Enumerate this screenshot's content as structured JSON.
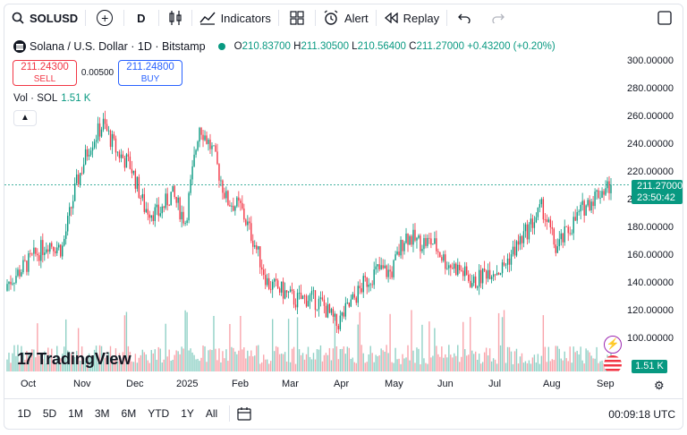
{
  "toolbar": {
    "symbol": "SOLUSD",
    "interval": "D",
    "indicators_label": "Indicators",
    "alert_label": "Alert",
    "replay_label": "Replay",
    "icons": [
      "search-icon",
      "add-symbol-icon",
      "candles-icon",
      "indicators-icon",
      "layout-icon",
      "alarm-icon",
      "replay-icon",
      "undo-icon",
      "redo-icon",
      "fullscreen-icon"
    ]
  },
  "legend": {
    "title": "Solana / U.S. Dollar · 1D · Bitstamp",
    "o_label": "O",
    "o": "210.83700",
    "h_label": "H",
    "h": "211.30500",
    "l_label": "L",
    "l": "210.56400",
    "c_label": "C",
    "c": "211.27000",
    "change": "+0.43200 (+0.20%)"
  },
  "trade": {
    "sell_price": "211.24300",
    "sell_label": "SELL",
    "spread": "0.00500",
    "buy_price": "211.24800",
    "buy_label": "BUY"
  },
  "volume": {
    "label": "Vol · SOL",
    "value": "1.51 K"
  },
  "price_axis": [
    "300.00000",
    "280.00000",
    "260.00000",
    "240.00000",
    "220.00000",
    "200.00000",
    "180.00000",
    "160.00000",
    "140.00000",
    "120.00000",
    "100.00000"
  ],
  "time_axis": [
    "Oct",
    "Nov",
    "Dec",
    "2025",
    "Feb",
    "Mar",
    "Apr",
    "May",
    "Jun",
    "Jul",
    "Aug",
    "Sep"
  ],
  "last_price": {
    "price": "211.27000",
    "countdown": "23:50:42"
  },
  "volume_tag": "1.51 K",
  "brand": "TradingView",
  "ranges": [
    "1D",
    "5D",
    "1M",
    "3M",
    "6M",
    "YTD",
    "1Y",
    "All"
  ],
  "clock": "00:09:18 UTC",
  "colors": {
    "up": "#089981",
    "down": "#f23645",
    "accent": "#2962ff"
  },
  "chart_data": {
    "type": "candlestick",
    "symbol": "SOLUSD",
    "interval": "1D",
    "ylim": [
      90,
      300
    ],
    "last_close": 211.27,
    "weekly_closes": [
      {
        "period": "Oct wk1",
        "close": 140
      },
      {
        "period": "Oct wk2",
        "close": 150
      },
      {
        "period": "Oct wk3",
        "close": 160
      },
      {
        "period": "Oct wk4",
        "close": 170
      },
      {
        "period": "Nov wk1",
        "close": 165
      },
      {
        "period": "Nov wk2",
        "close": 210
      },
      {
        "period": "Nov wk3",
        "close": 240
      },
      {
        "period": "Nov wk4",
        "close": 255
      },
      {
        "period": "Dec wk1",
        "close": 235
      },
      {
        "period": "Dec wk2",
        "close": 225
      },
      {
        "period": "Dec wk3",
        "close": 195
      },
      {
        "period": "Dec wk4",
        "close": 190
      },
      {
        "period": "Jan wk1",
        "close": 205
      },
      {
        "period": "Jan wk2",
        "close": 185
      },
      {
        "period": "Jan wk3",
        "close": 255
      },
      {
        "period": "Jan wk4",
        "close": 235
      },
      {
        "period": "Feb wk1",
        "close": 200
      },
      {
        "period": "Feb wk2",
        "close": 195
      },
      {
        "period": "Feb wk3",
        "close": 170
      },
      {
        "period": "Feb wk4",
        "close": 140
      },
      {
        "period": "Mar wk1",
        "close": 135
      },
      {
        "period": "Mar wk2",
        "close": 128
      },
      {
        "period": "Mar wk3",
        "close": 130
      },
      {
        "period": "Mar wk4",
        "close": 125
      },
      {
        "period": "Apr wk1",
        "close": 110
      },
      {
        "period": "Apr wk2",
        "close": 125
      },
      {
        "period": "Apr wk3",
        "close": 140
      },
      {
        "period": "Apr wk4",
        "close": 150
      },
      {
        "period": "May wk1",
        "close": 148
      },
      {
        "period": "May wk2",
        "close": 175
      },
      {
        "period": "May wk3",
        "close": 170
      },
      {
        "period": "May wk4",
        "close": 170
      },
      {
        "period": "Jun wk1",
        "close": 155
      },
      {
        "period": "Jun wk2",
        "close": 150
      },
      {
        "period": "Jun wk3",
        "close": 140
      },
      {
        "period": "Jun wk4",
        "close": 150
      },
      {
        "period": "Jul wk1",
        "close": 150
      },
      {
        "period": "Jul wk2",
        "close": 165
      },
      {
        "period": "Jul wk3",
        "close": 180
      },
      {
        "period": "Jul wk4",
        "close": 195
      },
      {
        "period": "Aug wk1",
        "close": 165
      },
      {
        "period": "Aug wk2",
        "close": 180
      },
      {
        "period": "Aug wk3",
        "close": 195
      },
      {
        "period": "Aug wk4",
        "close": 205
      },
      {
        "period": "Sep wk1",
        "close": 211.27
      }
    ]
  }
}
